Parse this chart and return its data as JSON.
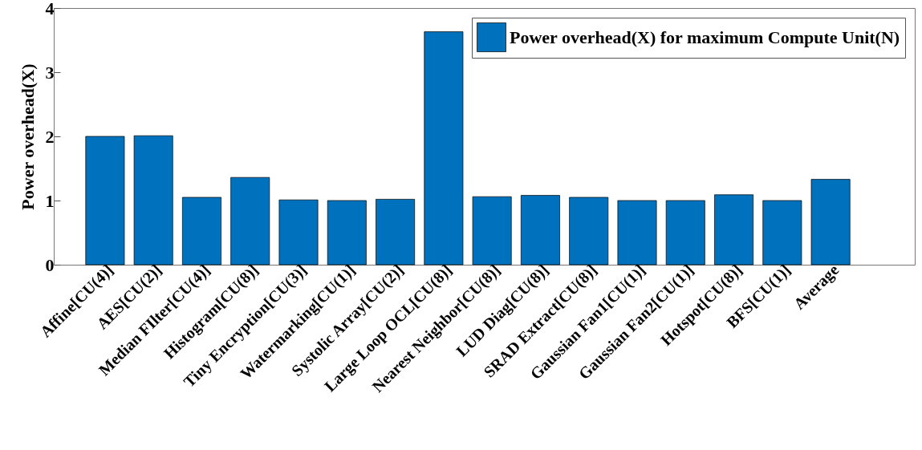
{
  "chart_data": {
    "type": "bar",
    "ylabel": "Power overhead(X)",
    "categories": [
      "Affine[CU(4)]",
      "AES[CU(2)]",
      "Median FIlter[CU(4)]",
      "Histogram[CU(8)]",
      "Tiny Encryption[CU(3)]",
      "Watermarking[CU(1)]",
      "Systolic Array[CU(2)]",
      "Large Loop OCL[CU(8)]",
      "Nearest Neighbor[CU(8)]",
      "LUD Diag[CU(8)]",
      "SRAD Extract[CU(8)]",
      "Gaussian Fan1[CU(1)]",
      "Gaussian Fan2[CU(1)]",
      "Hotspot[CU(8)]",
      "BFS[CU(1)]",
      "Average"
    ],
    "series": [
      {
        "name": "Power overhead(X) for maximum Compute Unit(N)",
        "color": "#0072bd",
        "values": [
          2.0,
          2.01,
          1.05,
          1.36,
          1.01,
          1.0,
          1.02,
          3.63,
          1.06,
          1.08,
          1.05,
          1.0,
          1.0,
          1.09,
          1.0,
          1.33
        ]
      }
    ],
    "ylim": [
      0,
      4
    ],
    "yticks": [
      0,
      1,
      2,
      3,
      4
    ],
    "grid": false,
    "legend": "top right"
  }
}
